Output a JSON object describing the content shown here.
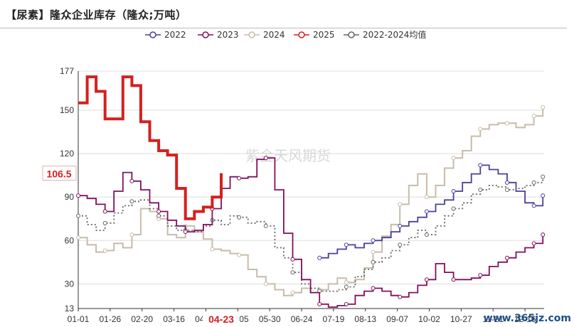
{
  "page": {
    "title": "【尿素】隆众企业库存（隆众;万吨）",
    "watermark": "紫金天风期货",
    "corner_watermark": "www.365jz.com"
  },
  "colors": {
    "2022": "#4a3f9a",
    "2023": "#80105e",
    "2024": "#c8bca8",
    "2025": "#d42020",
    "avg": "#666666",
    "grid": "#dddddd",
    "axis": "#333333",
    "highlight": "#d42020"
  },
  "chart_data": {
    "type": "line",
    "title": "【尿素】隆众企业库存（隆众;万吨）",
    "xlabel": "",
    "ylabel": "",
    "xlim": [
      0,
      365
    ],
    "ylim": [
      13,
      177
    ],
    "yticks": [
      13,
      30,
      60,
      90,
      120,
      150,
      177
    ],
    "xtick_labels": [
      "01-01",
      "01-26",
      "02-20",
      "03-16",
      "04-10",
      "05-05",
      "05-30",
      "06-24",
      "07-19",
      "08-13",
      "09-07",
      "10-02",
      "10-27",
      "11-21",
      "12-16"
    ],
    "xtick_days": [
      0,
      25,
      50,
      75,
      100,
      125,
      150,
      175,
      200,
      225,
      250,
      275,
      300,
      325,
      350
    ],
    "highlight_tick": {
      "label": "04-23",
      "day": 112
    },
    "highlight_value": {
      "label": "106.5",
      "value": 106.5
    },
    "legend": {
      "position": "top-center",
      "entries": [
        "2022",
        "2023",
        "2024",
        "2025",
        "2022-2024均值"
      ]
    },
    "grid": true,
    "series": [
      {
        "name": "2022",
        "key": "2022",
        "x": [
          189,
          196,
          203,
          210,
          217,
          224,
          231,
          238,
          245,
          252,
          259,
          266,
          273,
          280,
          287,
          294,
          301,
          308,
          315,
          322,
          329,
          336,
          343,
          350,
          357,
          364
        ],
        "y": [
          48,
          51,
          54,
          57,
          55,
          58,
          60,
          62,
          66,
          70,
          73,
          76,
          80,
          85,
          88,
          94,
          100,
          106,
          112,
          109,
          106,
          100,
          94,
          86,
          84,
          91
        ]
      },
      {
        "name": "2023",
        "key": "2023",
        "x": [
          0,
          7,
          14,
          21,
          28,
          35,
          42,
          49,
          56,
          63,
          70,
          77,
          84,
          91,
          98,
          105,
          112,
          119,
          126,
          133,
          140,
          147,
          154,
          161,
          168,
          175,
          182,
          189,
          196,
          203,
          210,
          217,
          224,
          231,
          238,
          245,
          252,
          259,
          266,
          273,
          280,
          287,
          294,
          301,
          308,
          315,
          322,
          329,
          336,
          343,
          350,
          357,
          364
        ],
        "y": [
          91,
          89,
          85,
          80,
          94,
          107,
          101,
          95,
          86,
          80,
          74,
          70,
          66,
          67,
          71,
          82,
          96,
          104,
          103,
          104,
          116,
          117,
          95,
          65,
          47,
          33,
          24,
          16,
          14,
          15,
          16,
          22,
          25,
          27,
          25,
          22,
          21,
          24,
          29,
          33,
          44,
          38,
          33,
          33,
          34,
          36,
          42,
          45,
          48,
          52,
          55,
          58,
          64
        ]
      },
      {
        "name": "2024",
        "key": "2024",
        "x": [
          0,
          7,
          14,
          21,
          28,
          35,
          42,
          49,
          56,
          63,
          70,
          77,
          84,
          91,
          98,
          105,
          112,
          119,
          126,
          133,
          140,
          147,
          154,
          161,
          168,
          175,
          182,
          189,
          196,
          203,
          210,
          217,
          224,
          231,
          238,
          245,
          252,
          259,
          266,
          273,
          280,
          287,
          294,
          301,
          308,
          315,
          322,
          329,
          336,
          343,
          350,
          357,
          364
        ],
        "y": [
          62,
          57,
          52,
          53,
          58,
          55,
          64,
          82,
          80,
          75,
          64,
          62,
          70,
          66,
          61,
          54,
          53,
          51,
          50,
          40,
          35,
          30,
          26,
          22,
          24,
          27,
          24,
          26,
          30,
          34,
          31,
          33,
          41,
          52,
          63,
          71,
          85,
          98,
          106,
          90,
          98,
          110,
          117,
          122,
          132,
          137,
          140,
          141,
          141,
          138,
          140,
          146,
          152
        ]
      },
      {
        "name": "2025",
        "key": "2025",
        "x": [
          0,
          7,
          14,
          21,
          28,
          35,
          42,
          49,
          56,
          63,
          70,
          77,
          84,
          91,
          98,
          105,
          112
        ],
        "y": [
          155,
          173,
          163,
          144,
          144,
          173,
          167,
          142,
          129,
          122,
          119,
          96,
          75,
          80,
          83,
          90,
          106.5
        ]
      },
      {
        "name": "2022-2024均值",
        "key": "avg",
        "x": [
          0,
          7,
          14,
          21,
          28,
          35,
          42,
          49,
          56,
          63,
          70,
          77,
          84,
          91,
          98,
          105,
          112,
          119,
          126,
          133,
          140,
          147,
          154,
          161,
          168,
          175,
          182,
          189,
          196,
          203,
          210,
          217,
          224,
          231,
          238,
          245,
          252,
          259,
          266,
          273,
          280,
          287,
          294,
          301,
          308,
          315,
          322,
          329,
          336,
          343,
          350,
          357,
          364
        ],
        "y": [
          77,
          71,
          67,
          72,
          79,
          84,
          87,
          88,
          82,
          77,
          70,
          67,
          67,
          66,
          70,
          74,
          71,
          77,
          76,
          72,
          73,
          70,
          55,
          48,
          38,
          30,
          27,
          25,
          25,
          26,
          28,
          35,
          40,
          45,
          48,
          53,
          57,
          62,
          67,
          64,
          70,
          77,
          82,
          86,
          92,
          95,
          98,
          97,
          95,
          96,
          98,
          100,
          104
        ]
      }
    ]
  }
}
